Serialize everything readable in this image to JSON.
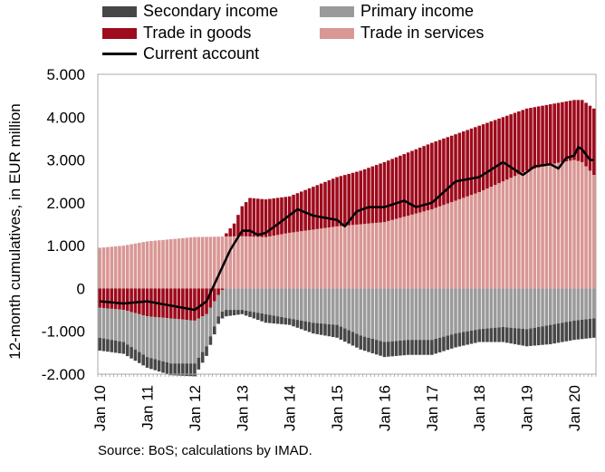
{
  "chart_data": {
    "type": "bar",
    "stacked": true,
    "title": "",
    "ylabel": "12-month cumulatives, in EUR million",
    "xlabel": "",
    "ylim": [
      -2000,
      5000
    ],
    "yticks": [
      -2000,
      -1000,
      0,
      1000,
      2000,
      3000,
      4000,
      5000
    ],
    "ytick_labels": [
      "-2.000",
      "-1.000",
      "0",
      "1.000",
      "2.000",
      "3.000",
      "4.000",
      "5.000"
    ],
    "xtick_labels": [
      "Jan 10",
      "Jan 11",
      "Jan 12",
      "Jan 13",
      "Jan 14",
      "Jan 15",
      "Jan 16",
      "Jan 17",
      "Jan 18",
      "Jan 19",
      "Jan 20"
    ],
    "frequency": "monthly",
    "start": "Jan 10",
    "n_periods": 126,
    "grid": false,
    "legend_position": "top",
    "colors": {
      "secondary_income": "#474747",
      "primary_income": "#9a9a9a",
      "trade_in_goods": "#9e0b1c",
      "trade_in_services": "#d99795",
      "current_account": "#000000"
    },
    "series_keyframes": {
      "trade_in_services": [
        [
          0,
          950
        ],
        [
          6,
          1000
        ],
        [
          12,
          1100
        ],
        [
          24,
          1200
        ],
        [
          36,
          1220
        ],
        [
          42,
          1200
        ],
        [
          48,
          1300
        ],
        [
          60,
          1450
        ],
        [
          72,
          1550
        ],
        [
          84,
          1850
        ],
        [
          96,
          2250
        ],
        [
          108,
          2750
        ],
        [
          114,
          2900
        ],
        [
          120,
          3000
        ],
        [
          122,
          2950
        ],
        [
          125,
          2650
        ]
      ],
      "trade_in_goods": [
        [
          0,
          -450
        ],
        [
          6,
          -500
        ],
        [
          12,
          -650
        ],
        [
          18,
          -700
        ],
        [
          24,
          -750
        ],
        [
          27,
          -600
        ],
        [
          30,
          -150
        ],
        [
          34,
          300
        ],
        [
          36,
          700
        ],
        [
          38,
          900
        ],
        [
          48,
          850
        ],
        [
          54,
          1000
        ],
        [
          60,
          1150
        ],
        [
          66,
          1250
        ],
        [
          72,
          1400
        ],
        [
          84,
          1550
        ],
        [
          96,
          1550
        ],
        [
          108,
          1450
        ],
        [
          114,
          1400
        ],
        [
          120,
          1400
        ],
        [
          122,
          1450
        ],
        [
          125,
          1550
        ]
      ],
      "primary_income": [
        [
          0,
          -700
        ],
        [
          6,
          -750
        ],
        [
          12,
          -950
        ],
        [
          18,
          -1050
        ],
        [
          24,
          -1000
        ],
        [
          30,
          -500
        ],
        [
          36,
          -500
        ],
        [
          42,
          -600
        ],
        [
          48,
          -700
        ],
        [
          54,
          -800
        ],
        [
          60,
          -850
        ],
        [
          66,
          -1100
        ],
        [
          72,
          -1250
        ],
        [
          78,
          -1200
        ],
        [
          84,
          -1200
        ],
        [
          90,
          -1050
        ],
        [
          96,
          -950
        ],
        [
          102,
          -900
        ],
        [
          108,
          -950
        ],
        [
          114,
          -850
        ],
        [
          120,
          -750
        ],
        [
          125,
          -700
        ]
      ],
      "secondary_income": [
        [
          0,
          -300
        ],
        [
          12,
          -250
        ],
        [
          24,
          -300
        ],
        [
          28,
          -200
        ],
        [
          36,
          -100
        ],
        [
          42,
          -200
        ],
        [
          48,
          -150
        ],
        [
          54,
          -250
        ],
        [
          60,
          -300
        ],
        [
          72,
          -350
        ],
        [
          84,
          -350
        ],
        [
          96,
          -300
        ],
        [
          108,
          -400
        ],
        [
          114,
          -450
        ],
        [
          120,
          -450
        ],
        [
          125,
          -450
        ]
      ],
      "current_account": [
        [
          0,
          -300
        ],
        [
          6,
          -350
        ],
        [
          12,
          -300
        ],
        [
          18,
          -400
        ],
        [
          24,
          -500
        ],
        [
          27,
          -300
        ],
        [
          30,
          300
        ],
        [
          33,
          900
        ],
        [
          36,
          1350
        ],
        [
          38,
          1350
        ],
        [
          40,
          1250
        ],
        [
          42,
          1300
        ],
        [
          45,
          1500
        ],
        [
          50,
          1850
        ],
        [
          54,
          1700
        ],
        [
          60,
          1600
        ],
        [
          62,
          1450
        ],
        [
          65,
          1800
        ],
        [
          68,
          1900
        ],
        [
          72,
          1900
        ],
        [
          77,
          2050
        ],
        [
          80,
          1900
        ],
        [
          84,
          2000
        ],
        [
          90,
          2500
        ],
        [
          96,
          2600
        ],
        [
          102,
          2950
        ],
        [
          107,
          2650
        ],
        [
          110,
          2850
        ],
        [
          114,
          2900
        ],
        [
          116,
          2800
        ],
        [
          118,
          3050
        ],
        [
          120,
          3100
        ],
        [
          121,
          3300
        ],
        [
          122,
          3250
        ],
        [
          124,
          3000
        ],
        [
          125,
          3000
        ]
      ]
    },
    "series": [
      {
        "name": "Secondary income",
        "key": "secondary_income",
        "kind": "bar"
      },
      {
        "name": "Primary income",
        "key": "primary_income",
        "kind": "bar"
      },
      {
        "name": "Trade in goods",
        "key": "trade_in_goods",
        "kind": "bar"
      },
      {
        "name": "Trade in services",
        "key": "trade_in_services",
        "kind": "bar"
      },
      {
        "name": "Current account",
        "key": "current_account",
        "kind": "line"
      }
    ]
  },
  "legend": {
    "secondary_income": "Secondary income",
    "primary_income": "Primary income",
    "trade_in_goods": "Trade in goods",
    "trade_in_services": "Trade in services",
    "current_account": "Current account"
  },
  "source": "Source: BoS; calculations by IMAD."
}
